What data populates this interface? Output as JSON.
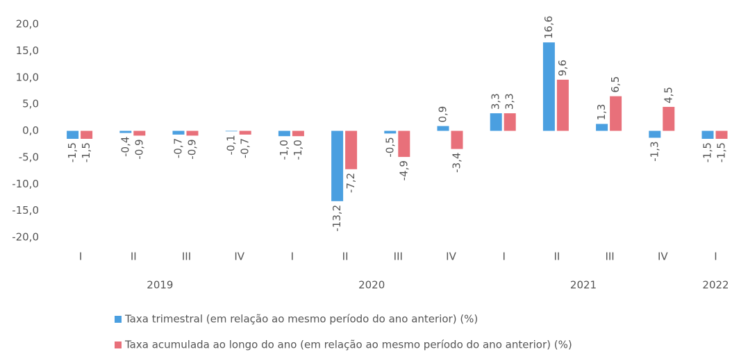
{
  "chart_data": {
    "type": "bar",
    "categories": [
      "I",
      "II",
      "III",
      "IV",
      "I",
      "II",
      "III",
      "IV",
      "I",
      "II",
      "III",
      "IV",
      "I"
    ],
    "category_groups": [
      {
        "label": "2019",
        "size": 4
      },
      {
        "label": "2020",
        "size": 4
      },
      {
        "label": "2021",
        "size": 4
      },
      {
        "label": "2022",
        "size": 1
      }
    ],
    "series": [
      {
        "name": "Taxa trimestral (em relação ao mesmo período do ano anterior) (%)",
        "color": "#4a9fe0",
        "values": [
          -1.5,
          -0.4,
          -0.7,
          -0.1,
          -1.0,
          -13.2,
          -0.5,
          0.9,
          3.3,
          16.6,
          1.3,
          -1.3,
          -1.5
        ],
        "value_labels": [
          "-1,5",
          "-0,4",
          "-0,7",
          "-0,1",
          "-1,0",
          "-13,2",
          "-0,5",
          "0,9",
          "3,3",
          "16,6",
          "1,3",
          "-1,3",
          "-1,5"
        ]
      },
      {
        "name": "Taxa acumulada ao longo do ano (em relação ao mesmo período do ano anterior) (%)",
        "color": "#e8707a",
        "values": [
          -1.5,
          -0.9,
          -0.9,
          -0.7,
          -1.0,
          -7.2,
          -4.9,
          -3.4,
          3.3,
          9.6,
          6.5,
          4.5,
          -1.5
        ],
        "value_labels": [
          "-1,5",
          "-0,9",
          "-0,9",
          "-0,7",
          "-1,0",
          "-7,2",
          "-4,9",
          "-3,4",
          "3,3",
          "9,6",
          "6,5",
          "4,5",
          "-1,5"
        ]
      }
    ],
    "ylim": [
      -20,
      20
    ],
    "yticks": [
      {
        "value": 20,
        "label": "20,0"
      },
      {
        "value": 15,
        "label": "15,0"
      },
      {
        "value": 10,
        "label": "10,0"
      },
      {
        "value": 5,
        "label": "5,0"
      },
      {
        "value": 0,
        "label": "0,0"
      },
      {
        "value": -5,
        "label": "-5,0"
      },
      {
        "value": -10,
        "label": "-10,0"
      },
      {
        "value": -15,
        "label": "-15,0"
      },
      {
        "value": -20,
        "label": "-20,0"
      }
    ],
    "grid": false,
    "legend": "bottom"
  }
}
